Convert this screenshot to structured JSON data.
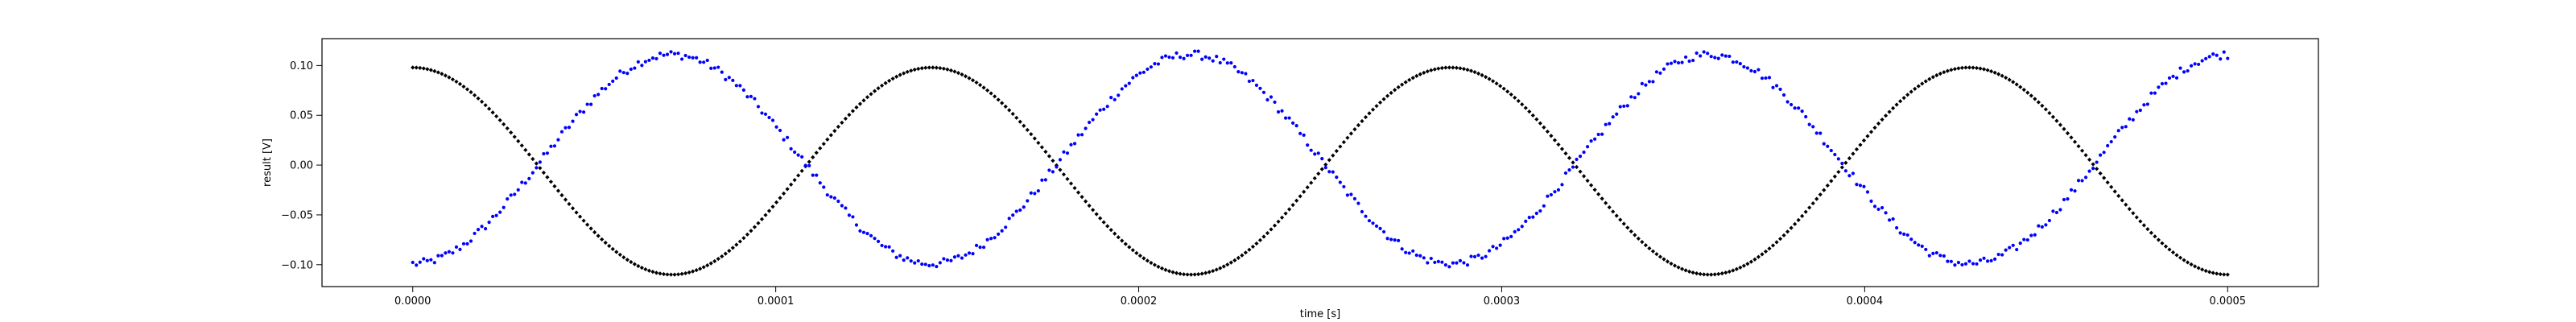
{
  "chart_data": {
    "type": "scatter",
    "title": "",
    "xlabel": "time [s]",
    "ylabel": "result [V]",
    "xlim": [
      -2.5e-05,
      0.000525
    ],
    "ylim": [
      -0.122,
      0.127
    ],
    "grid": false,
    "legend": "none",
    "x_ticks": [
      0.0,
      0.0001,
      0.0002,
      0.0003,
      0.0004,
      0.0005
    ],
    "x_tick_labels": [
      "0.0000",
      "0.0001",
      "0.0002",
      "0.0003",
      "0.0004",
      "0.0005"
    ],
    "y_ticks": [
      0.1,
      0.05,
      0.0,
      -0.05,
      -0.1
    ],
    "y_tick_labels": [
      "0.10",
      "0.05",
      "0.00",
      "−0.05",
      "−0.10"
    ],
    "series": [
      {
        "color": "#000000",
        "marker": "diamond",
        "x_start": 0.0,
        "x_end": 0.0005,
        "points": 500,
        "amplitude": 0.104,
        "offset": -0.006,
        "period": 0.0001429,
        "phase": 0.0
      },
      {
        "color": "#0000ff",
        "marker": "dot",
        "x_start": 0.0,
        "x_end": 0.0005,
        "points": 500,
        "amplitude": 0.105,
        "offset": 0.006,
        "period": 0.0001429,
        "phase": 3.14159,
        "noise": 0.004
      }
    ]
  }
}
